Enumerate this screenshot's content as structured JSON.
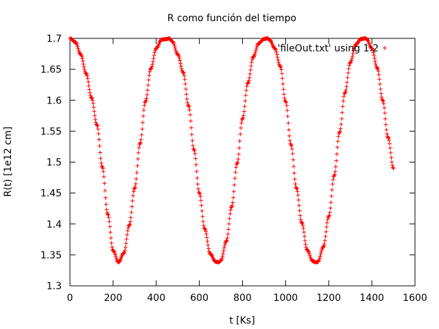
{
  "chart_data": {
    "type": "scatter",
    "title": "R como función del tiempo",
    "xlabel": "t [Ks]",
    "ylabel": "R(t) [1e12 cm]",
    "xlim": [
      0,
      1600
    ],
    "ylim": [
      1.3,
      1.7
    ],
    "xticks": [
      "0",
      "200",
      "400",
      "600",
      "800",
      "1000",
      "1200",
      "1400",
      "1600"
    ],
    "yticks": [
      "1.3",
      "1.35",
      "1.4",
      "1.45",
      "1.5",
      "1.55",
      "1.6",
      "1.65",
      "1.7"
    ],
    "grid": false,
    "legend_position": "top-right",
    "marker": "+",
    "series": [
      {
        "name": "'fileOut.txt' using 1:2",
        "color": "#ff0000",
        "x": [
          0,
          25,
          50,
          75,
          100,
          125,
          150,
          175,
          200,
          225,
          250,
          275,
          300,
          325,
          350,
          375,
          400,
          425,
          450,
          460,
          475,
          500,
          525,
          550,
          575,
          600,
          625,
          650,
          675,
          690,
          700,
          725,
          750,
          775,
          800,
          825,
          850,
          875,
          900,
          915,
          925,
          950,
          975,
          1000,
          1025,
          1050,
          1075,
          1100,
          1125,
          1140,
          1150,
          1175,
          1200,
          1225,
          1250,
          1275,
          1300,
          1325,
          1350,
          1370,
          1375,
          1400,
          1425,
          1450,
          1475,
          1500
        ],
        "y": [
          1.7,
          1.694,
          1.674,
          1.643,
          1.604,
          1.56,
          1.492,
          1.416,
          1.357,
          1.338,
          1.353,
          1.398,
          1.458,
          1.53,
          1.598,
          1.651,
          1.684,
          1.698,
          1.699,
          1.7,
          1.695,
          1.674,
          1.645,
          1.591,
          1.52,
          1.45,
          1.392,
          1.352,
          1.339,
          1.338,
          1.341,
          1.372,
          1.428,
          1.498,
          1.57,
          1.628,
          1.67,
          1.692,
          1.699,
          1.7,
          1.698,
          1.684,
          1.655,
          1.598,
          1.528,
          1.458,
          1.402,
          1.358,
          1.34,
          1.338,
          1.339,
          1.363,
          1.412,
          1.478,
          1.548,
          1.612,
          1.661,
          1.69,
          1.699,
          1.7,
          1.699,
          1.684,
          1.652,
          1.6,
          1.54,
          1.49
        ]
      }
    ]
  }
}
